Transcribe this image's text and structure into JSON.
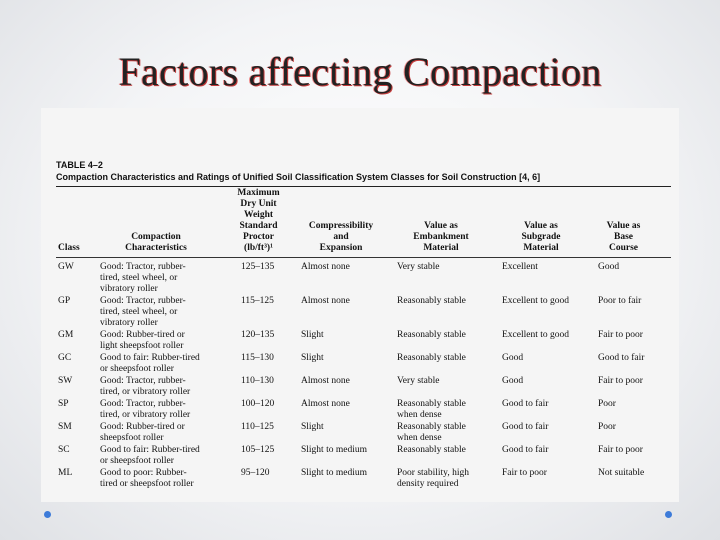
{
  "slide": {
    "title": "Factors affecting Compaction"
  },
  "table": {
    "number": "TABLE 4–2",
    "caption": "Compaction Characteristics and Ratings of Unified Soil Classification System Classes for Soil Construction [4, 6]",
    "headers": {
      "class": "Class",
      "compaction": "Compaction\nCharacteristics",
      "density": "Maximum\nDry Unit\nWeight\nStandard\nProctor\n(lb/ft³)¹",
      "compressibility": "Compressibility\nand\nExpansion",
      "embankment": "Value as\nEmbankment\nMaterial",
      "subgrade": "Value as\nSubgrade\nMaterial",
      "base": "Value as\nBase\nCourse"
    },
    "rows": [
      {
        "cls": "GW",
        "comp": "Good: Tractor, rubber-\ntired, steel wheel, or\nvibratory roller",
        "dens": "125–135",
        "compr": "Almost none",
        "emb": "Very stable",
        "sub": "Excellent",
        "base": "Good"
      },
      {
        "cls": "GP",
        "comp": "Good: Tractor, rubber-\ntired, steel wheel, or\nvibratory roller",
        "dens": "115–125",
        "compr": "Almost none",
        "emb": "Reasonably stable",
        "sub": "Excellent to good",
        "base": "Poor to fair"
      },
      {
        "cls": "GM",
        "comp": "Good: Rubber-tired or\nlight sheepsfoot roller",
        "dens": "120–135",
        "compr": "Slight",
        "emb": "Reasonably stable",
        "sub": "Excellent to good",
        "base": "Fair to poor"
      },
      {
        "cls": "GC",
        "comp": "Good to fair: Rubber-tired\nor sheepsfoot roller",
        "dens": "115–130",
        "compr": "Slight",
        "emb": "Reasonably stable",
        "sub": "Good",
        "base": "Good to fair"
      },
      {
        "cls": "SW",
        "comp": "Good: Tractor, rubber-\ntired, or vibratory roller",
        "dens": "110–130",
        "compr": "Almost none",
        "emb": "Very stable",
        "sub": "Good",
        "base": "Fair to poor"
      },
      {
        "cls": "SP",
        "comp": "Good: Tractor, rubber-\ntired, or vibratory roller",
        "dens": "100–120",
        "compr": "Almost none",
        "emb": "Reasonably stable\nwhen dense",
        "sub": "Good to fair",
        "base": "Poor"
      },
      {
        "cls": "SM",
        "comp": "Good: Rubber-tired or\nsheepsfoot roller",
        "dens": "110–125",
        "compr": "Slight",
        "emb": "Reasonably stable\nwhen dense",
        "sub": "Good to fair",
        "base": "Poor"
      },
      {
        "cls": "SC",
        "comp": "Good to fair: Rubber-tired\nor sheepsfoot roller",
        "dens": "105–125",
        "compr": "Slight to medium",
        "emb": "Reasonably stable",
        "sub": "Good to fair",
        "base": "Fair to poor"
      },
      {
        "cls": "ML",
        "comp": "Good to poor: Rubber-\ntired or sheepsfoot roller",
        "dens": "95–120",
        "compr": "Slight to medium",
        "emb": "Poor stability, high\ndensity required",
        "sub": "Fair to poor",
        "base": "Not suitable"
      }
    ]
  }
}
